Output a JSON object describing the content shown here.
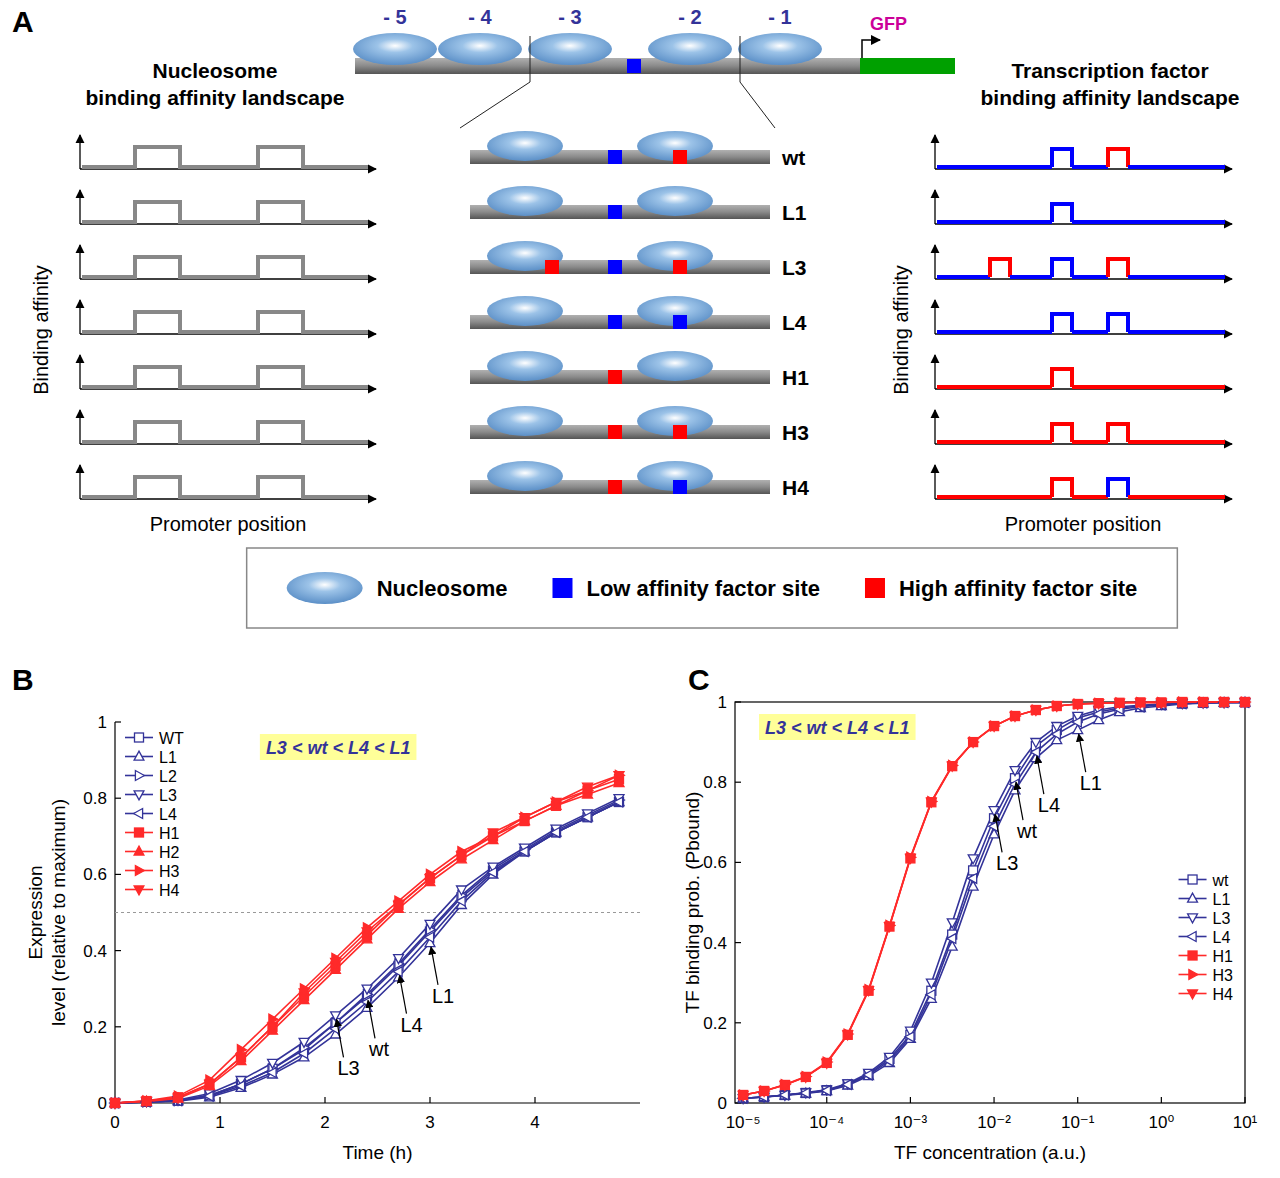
{
  "panel_letters": [
    "A",
    "B",
    "C"
  ],
  "panel_a": {
    "promoter": {
      "nucleosome_labels": [
        "- 5",
        "- 4",
        "- 3",
        "- 2",
        "- 1"
      ],
      "site": "#0000ff",
      "reporter": "GFP",
      "reporter_color": "#00a000",
      "reporter_text_color": "#cc0099"
    },
    "left_title": "Nucleosome binding affinity landscape",
    "right_title": "Transcription factor binding affinity landscape",
    "y_label": "Binding affinity",
    "x_label": "Promoter position",
    "nucleosome_color": "#9cc3e8",
    "landscape_color": "#888888",
    "rows": [
      {
        "label": "wt",
        "sites": [
          null,
          "#0000ff",
          "#ff0000"
        ]
      },
      {
        "label": "L1",
        "sites": [
          null,
          "#0000ff",
          null
        ]
      },
      {
        "label": "L3",
        "sites": [
          "#ff0000",
          "#0000ff",
          "#ff0000"
        ]
      },
      {
        "label": "L4",
        "sites": [
          null,
          "#0000ff",
          "#0000ff"
        ]
      },
      {
        "label": "H1",
        "sites": [
          null,
          "#ff0000",
          null
        ]
      },
      {
        "label": "H3",
        "sites": [
          null,
          "#ff0000",
          "#ff0000"
        ]
      },
      {
        "label": "H4",
        "sites": [
          null,
          "#ff0000",
          "#0000ff"
        ]
      }
    ],
    "legend": [
      {
        "label": "Nucleosome",
        "color": "#9cc3e8",
        "marker": "ellipse"
      },
      {
        "label": "Low affinity factor site",
        "color": "#0000ff",
        "marker": "square"
      },
      {
        "label": "High affinity factor site",
        "color": "#ff0000",
        "marker": "square"
      }
    ]
  },
  "chart_data": [
    {
      "type": "line",
      "x_label": "Time (h)",
      "y_label": "Expression level (relative to maximum)",
      "x": [
        0,
        0.3,
        0.6,
        0.9,
        1.2,
        1.5,
        1.8,
        2.1,
        2.4,
        2.7,
        3.0,
        3.3,
        3.6,
        3.9,
        4.2,
        4.5,
        4.8
      ],
      "xlim": [
        0,
        5
      ],
      "xticks": [
        0,
        1,
        2,
        3,
        4
      ],
      "ylim": [
        0,
        1
      ],
      "yticks": [
        0,
        0.2,
        0.4,
        0.6,
        0.8,
        1
      ],
      "grid": false,
      "legend": "top-left",
      "hlines": [
        0.5
      ],
      "annotation": {
        "text": "L3 < wt < L4 < L1",
        "color": "#ffff99",
        "text_color": "#333399"
      },
      "annotations": [
        {
          "text": "L3",
          "x": 2.1,
          "y": 0.23
        },
        {
          "text": "wt",
          "x": 2.4,
          "y": 0.28
        },
        {
          "text": "L4",
          "x": 2.7,
          "y": 0.345
        },
        {
          "text": "L1",
          "x": 3.0,
          "y": 0.42
        }
      ],
      "series": [
        {
          "name": "WT",
          "color": "#333399",
          "marker": "open-square",
          "values": [
            0,
            0.003,
            0.006,
            0.02,
            0.05,
            0.09,
            0.14,
            0.21,
            0.28,
            0.36,
            0.45,
            0.54,
            0.61,
            0.66,
            0.71,
            0.75,
            0.79
          ]
        },
        {
          "name": "L1",
          "color": "#333399",
          "marker": "open-triangle-up",
          "values": [
            0,
            0.002,
            0.005,
            0.015,
            0.04,
            0.075,
            0.12,
            0.18,
            0.25,
            0.33,
            0.42,
            0.52,
            0.6,
            0.66,
            0.71,
            0.75,
            0.79
          ]
        },
        {
          "name": "L2",
          "color": "#333399",
          "marker": "open-triangle-right",
          "values": [
            0,
            0.003,
            0.006,
            0.02,
            0.05,
            0.09,
            0.145,
            0.21,
            0.285,
            0.365,
            0.455,
            0.545,
            0.615,
            0.665,
            0.715,
            0.755,
            0.795
          ]
        },
        {
          "name": "L3",
          "color": "#333399",
          "marker": "open-triangle-down",
          "values": [
            0,
            0.004,
            0.008,
            0.025,
            0.06,
            0.105,
            0.16,
            0.23,
            0.3,
            0.38,
            0.47,
            0.56,
            0.62,
            0.67,
            0.72,
            0.76,
            0.8
          ]
        },
        {
          "name": "L4",
          "color": "#333399",
          "marker": "open-triangle-left",
          "values": [
            0,
            0.003,
            0.006,
            0.018,
            0.045,
            0.08,
            0.13,
            0.195,
            0.265,
            0.345,
            0.435,
            0.53,
            0.605,
            0.66,
            0.71,
            0.75,
            0.79
          ]
        },
        {
          "name": "H1",
          "color": "#ff2a2a",
          "marker": "square",
          "values": [
            0,
            0.005,
            0.015,
            0.05,
            0.12,
            0.2,
            0.28,
            0.36,
            0.44,
            0.52,
            0.59,
            0.65,
            0.7,
            0.74,
            0.78,
            0.82,
            0.85
          ]
        },
        {
          "name": "H2",
          "color": "#ff2a2a",
          "marker": "triangle-up",
          "values": [
            0,
            0.004,
            0.012,
            0.045,
            0.11,
            0.19,
            0.27,
            0.35,
            0.43,
            0.51,
            0.58,
            0.64,
            0.69,
            0.74,
            0.78,
            0.81,
            0.84
          ]
        },
        {
          "name": "H3",
          "color": "#ff2a2a",
          "marker": "triangle-right",
          "values": [
            0,
            0.006,
            0.018,
            0.06,
            0.14,
            0.22,
            0.3,
            0.38,
            0.46,
            0.53,
            0.6,
            0.66,
            0.7,
            0.75,
            0.79,
            0.82,
            0.86
          ]
        },
        {
          "name": "H4",
          "color": "#ff2a2a",
          "marker": "triangle-down",
          "values": [
            0,
            0.005,
            0.014,
            0.05,
            0.12,
            0.2,
            0.29,
            0.37,
            0.45,
            0.52,
            0.59,
            0.65,
            0.71,
            0.75,
            0.79,
            0.83,
            0.86
          ]
        }
      ]
    },
    {
      "type": "line",
      "x_label": "TF concentration (a.u.)",
      "y_label": "TF binding prob. (Pbound)",
      "log": "x",
      "x": [
        1e-05,
        1.78e-05,
        3.16e-05,
        5.62e-05,
        0.0001,
        0.000178,
        0.000316,
        0.000562,
        0.001,
        0.00178,
        0.00316,
        0.00562,
        0.01,
        0.0178,
        0.0316,
        0.0562,
        0.1,
        0.178,
        0.316,
        0.562,
        1,
        1.78,
        3.16,
        5.62,
        10
      ],
      "xlim": [
        8e-06,
        10
      ],
      "xticks": [
        {
          "value": 1e-05,
          "label": "10⁻⁵"
        },
        {
          "value": 0.0001,
          "label": "10⁻⁴"
        },
        {
          "value": 0.001,
          "label": "10⁻³"
        },
        {
          "value": 0.01,
          "label": "10⁻²"
        },
        {
          "value": 0.1,
          "label": "10⁻¹"
        },
        {
          "value": 1,
          "label": "10⁰"
        },
        {
          "value": 10,
          "label": "10¹"
        }
      ],
      "ylim": [
        0,
        1
      ],
      "yticks": [
        0,
        0.2,
        0.4,
        0.6,
        0.8,
        1
      ],
      "grid": false,
      "legend": "bottom-right",
      "annotation": {
        "text": "L3 < wt < L4 < L1",
        "color": "#ffff99",
        "text_color": "#333399"
      },
      "annotations": [
        {
          "text": "L3",
          "x": 0.01,
          "y": 0.73
        },
        {
          "text": "wt",
          "x": 0.0178,
          "y": 0.81
        },
        {
          "text": "L4",
          "x": 0.0316,
          "y": 0.875
        },
        {
          "text": "L1",
          "x": 0.1,
          "y": 0.93
        }
      ],
      "series": [
        {
          "name": "wt",
          "color": "#333399",
          "marker": "open-square",
          "values": [
            0.012,
            0.015,
            0.02,
            0.025,
            0.032,
            0.047,
            0.072,
            0.11,
            0.17,
            0.28,
            0.42,
            0.58,
            0.71,
            0.81,
            0.89,
            0.93,
            0.96,
            0.975,
            0.985,
            0.99,
            0.994,
            0.996,
            0.998,
            0.999,
            0.999
          ]
        },
        {
          "name": "L1",
          "color": "#333399",
          "marker": "open-triangle-up",
          "values": [
            0.012,
            0.015,
            0.019,
            0.024,
            0.03,
            0.044,
            0.067,
            0.1,
            0.16,
            0.26,
            0.39,
            0.54,
            0.67,
            0.78,
            0.86,
            0.905,
            0.93,
            0.955,
            0.975,
            0.985,
            0.99,
            0.995,
            0.997,
            0.998,
            0.999
          ]
        },
        {
          "name": "L3",
          "color": "#333399",
          "marker": "open-triangle-down",
          "values": [
            0.012,
            0.015,
            0.02,
            0.026,
            0.033,
            0.049,
            0.075,
            0.115,
            0.18,
            0.3,
            0.45,
            0.61,
            0.73,
            0.83,
            0.9,
            0.94,
            0.965,
            0.98,
            0.988,
            0.992,
            0.995,
            0.997,
            0.998,
            0.999,
            0.999
          ]
        },
        {
          "name": "L4",
          "color": "#333399",
          "marker": "open-triangle-left",
          "values": [
            0.012,
            0.015,
            0.02,
            0.025,
            0.031,
            0.046,
            0.07,
            0.105,
            0.165,
            0.27,
            0.41,
            0.56,
            0.69,
            0.795,
            0.875,
            0.92,
            0.95,
            0.97,
            0.982,
            0.988,
            0.993,
            0.996,
            0.998,
            0.999,
            0.999
          ]
        },
        {
          "name": "H1",
          "color": "#ff2a2a",
          "marker": "square",
          "values": [
            0.02,
            0.03,
            0.045,
            0.065,
            0.1,
            0.17,
            0.28,
            0.44,
            0.61,
            0.75,
            0.84,
            0.9,
            0.94,
            0.965,
            0.98,
            0.99,
            0.995,
            0.997,
            0.998,
            0.999,
            0.999,
            1,
            1,
            1,
            1
          ]
        },
        {
          "name": "H3",
          "color": "#ff2a2a",
          "marker": "triangle-right",
          "values": [
            0.02,
            0.03,
            0.046,
            0.066,
            0.102,
            0.172,
            0.283,
            0.443,
            0.613,
            0.752,
            0.842,
            0.9,
            0.94,
            0.965,
            0.98,
            0.99,
            0.995,
            0.997,
            0.998,
            0.999,
            0.999,
            1,
            1,
            1,
            1
          ]
        },
        {
          "name": "H4",
          "color": "#ff2a2a",
          "marker": "triangle-down",
          "values": [
            0.02,
            0.03,
            0.045,
            0.065,
            0.1,
            0.171,
            0.281,
            0.441,
            0.611,
            0.751,
            0.841,
            0.9,
            0.94,
            0.965,
            0.98,
            0.99,
            0.995,
            0.997,
            0.998,
            0.999,
            0.999,
            1,
            1,
            1,
            1
          ]
        }
      ]
    }
  ]
}
